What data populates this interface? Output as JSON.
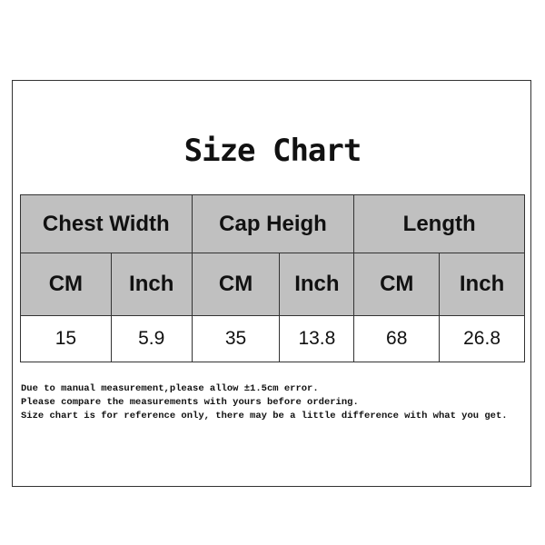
{
  "title": "Size Chart",
  "table": {
    "groups": [
      "Chest Width",
      "Cap Heigh",
      "Length"
    ],
    "units": [
      "CM",
      "Inch",
      "CM",
      "Inch",
      "CM",
      "Inch"
    ],
    "values": [
      "15",
      "5.9",
      "35",
      "13.8",
      "68",
      "26.8"
    ]
  },
  "notes": [
    "Due to manual measurement,please allow ±1.5cm error.",
    "Please compare the measurements with yours before ordering.",
    "Size chart is for reference only, there may be a little difference with what you get."
  ],
  "colors": {
    "header_bg": "#c0c0c0",
    "border": "#333333"
  }
}
